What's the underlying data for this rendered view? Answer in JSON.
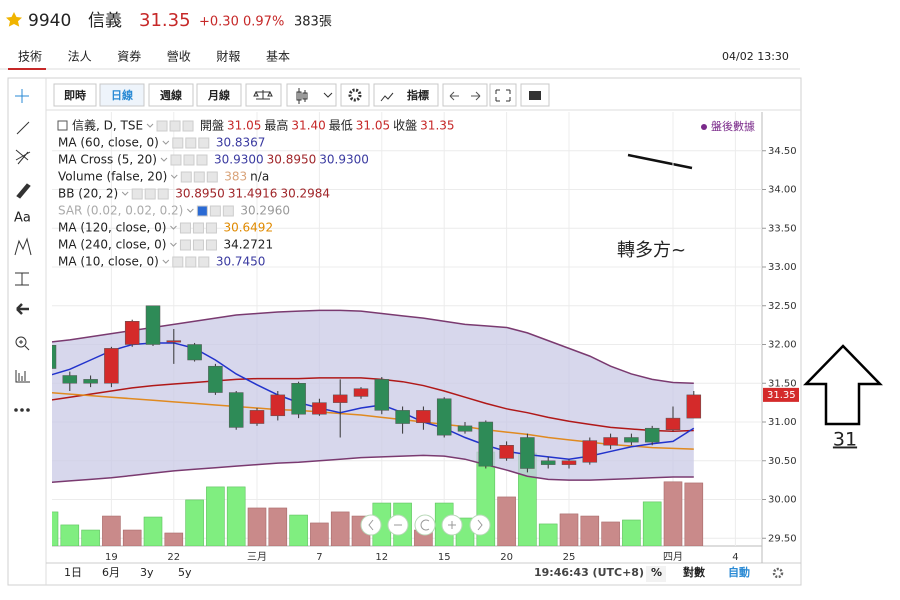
{
  "header": {
    "code": "9940",
    "name": "信義",
    "price": "31.35",
    "change": "+0.30",
    "percent": "0.97%",
    "volume": "383張"
  },
  "tabs": [
    "技術",
    "法人",
    "資券",
    "營收",
    "財報",
    "基本"
  ],
  "datetime": "04/02 13:30",
  "toolbar": {
    "realtime": "即時",
    "daily": "日線",
    "weekly": "週線",
    "monthly": "月線",
    "indicators": "指標"
  },
  "tools": {
    "text": "Aa"
  },
  "after_hours": "盤後數據",
  "legend": [
    {
      "name": "信義, D, TSE",
      "values": [
        "開盤",
        "31.05",
        "最高",
        "31.40",
        "最低",
        "31.05",
        "收盤",
        "31.35"
      ],
      "colors": [
        "#222",
        "#c62828",
        "#222",
        "#c62828",
        "#222",
        "#c62828",
        "#222",
        "#c62828"
      ]
    },
    {
      "name": "MA (60, close, 0)",
      "values": [
        "30.8367"
      ],
      "colors": [
        "#3a3aa0"
      ]
    },
    {
      "name": "MA Cross (5, 20)",
      "values": [
        "30.9300",
        "30.8950",
        "30.9300"
      ],
      "colors": [
        "#3a3aa0",
        "#a0262a",
        "#3a3aa0"
      ]
    },
    {
      "name": "Volume (false, 20)",
      "values": [
        "383",
        "n/a"
      ],
      "colors": [
        "#d9a37a",
        "#222"
      ]
    },
    {
      "name": "BB (20, 2)",
      "values": [
        "30.8950",
        "31.4916",
        "30.2984"
      ],
      "colors": [
        "#a0262a",
        "#a0262a",
        "#a0262a"
      ]
    },
    {
      "name": "SAR (0.02, 0.02, 0.2)",
      "values": [
        "30.2960"
      ],
      "colors": [
        "#999"
      ],
      "name_color": "#aaa"
    },
    {
      "name": "MA (120, close, 0)",
      "values": [
        "30.6492"
      ],
      "colors": [
        "#e08a00"
      ]
    },
    {
      "name": "MA (240, close, 0)",
      "values": [
        "34.2721"
      ],
      "colors": [
        "#222"
      ]
    },
    {
      "name": "MA (10, close, 0)",
      "values": [
        "30.7450"
      ],
      "colors": [
        "#3a3aa0"
      ]
    }
  ],
  "chart_data": {
    "type": "candlestick",
    "categories": [
      null,
      null,
      null,
      "19",
      null,
      null,
      "22",
      null,
      null,
      null,
      "三月",
      null,
      null,
      "7",
      null,
      null,
      "12",
      null,
      null,
      "15",
      null,
      null,
      "20",
      null,
      null,
      "25",
      null,
      null,
      null,
      null,
      "四月",
      null,
      null,
      "4"
    ],
    "open": [
      31.99,
      31.6,
      31.55,
      31.5,
      32.0,
      32.5,
      32.05,
      32.0,
      31.72,
      31.38,
      30.98,
      31.08,
      31.5,
      31.1,
      31.25,
      31.33,
      31.55,
      31.15,
      30.99,
      31.3,
      30.95,
      31.0,
      30.53,
      30.8,
      30.5,
      30.45,
      30.48,
      30.7,
      30.8,
      30.92,
      30.9,
      31.05,
      null,
      null
    ],
    "high": [
      32.05,
      31.65,
      31.6,
      31.97,
      32.32,
      32.5,
      32.2,
      32.02,
      31.75,
      31.4,
      31.18,
      31.4,
      31.52,
      31.3,
      31.55,
      31.45,
      31.58,
      31.2,
      31.2,
      31.32,
      31.0,
      31.02,
      30.75,
      30.85,
      30.55,
      30.52,
      30.8,
      30.85,
      30.85,
      30.95,
      31.2,
      31.4,
      null,
      null
    ],
    "low": [
      31.65,
      31.4,
      31.45,
      31.45,
      31.97,
      31.98,
      31.75,
      31.78,
      31.35,
      30.9,
      30.95,
      31.02,
      31.05,
      31.08,
      30.8,
      31.3,
      31.1,
      30.85,
      30.9,
      30.8,
      30.85,
      30.4,
      30.5,
      30.35,
      30.4,
      30.4,
      30.45,
      30.65,
      30.7,
      30.7,
      30.88,
      31.05,
      null,
      null
    ],
    "close": [
      31.69,
      31.5,
      31.5,
      31.95,
      32.3,
      32.0,
      32.05,
      31.8,
      31.38,
      30.93,
      31.15,
      31.35,
      31.1,
      31.25,
      31.35,
      31.43,
      31.15,
      30.98,
      31.15,
      30.83,
      30.88,
      30.43,
      30.7,
      30.4,
      30.45,
      30.5,
      30.76,
      30.8,
      30.74,
      30.74,
      31.05,
      31.35,
      null,
      null
    ],
    "volume": [
      207,
      128,
      97,
      182,
      97,
      176,
      79,
      280,
      359,
      359,
      231,
      231,
      188,
      140,
      207,
      182,
      261,
      261,
      97,
      261,
      170,
      571,
      298,
      565,
      134,
      195,
      182,
      146,
      158,
      268,
      390,
      383,
      null,
      null
    ],
    "up_color": "#d42a2a",
    "down_color": "#2e8b57",
    "up_volume_color": "#c98a8a",
    "down_volume_color": "#80ee80",
    "band_fill": "#c9c9e6",
    "series": [
      {
        "color": "#7a3a70",
        "values": [
          32.03,
          32.06,
          32.1,
          32.14,
          32.18,
          32.22,
          32.26,
          32.3,
          32.34,
          32.38,
          32.4,
          32.42,
          32.43,
          32.44,
          32.44,
          32.43,
          32.4,
          32.37,
          32.34,
          32.3,
          32.26,
          32.24,
          32.22,
          32.15,
          32.05,
          31.95,
          31.85,
          31.72,
          31.62,
          31.55,
          31.51,
          31.5,
          null,
          null
        ]
      },
      {
        "color": "#7a3a70",
        "values": [
          30.22,
          30.24,
          30.26,
          30.28,
          30.31,
          30.34,
          30.37,
          30.39,
          30.41,
          30.43,
          30.45,
          30.47,
          30.48,
          30.5,
          30.52,
          30.54,
          30.55,
          30.56,
          30.57,
          30.56,
          30.52,
          30.45,
          30.38,
          30.3,
          30.26,
          30.25,
          30.25,
          30.26,
          30.27,
          30.28,
          30.29,
          30.29,
          null,
          null
        ]
      },
      {
        "color": "#b01818",
        "values": [
          31.28,
          31.32,
          31.36,
          31.4,
          31.44,
          31.47,
          31.49,
          31.51,
          31.53,
          31.55,
          31.56,
          31.56,
          31.56,
          31.57,
          31.57,
          31.57,
          31.55,
          31.52,
          31.47,
          31.4,
          31.32,
          31.24,
          31.17,
          31.12,
          31.06,
          31.01,
          30.97,
          30.93,
          30.91,
          30.89,
          30.88,
          30.89,
          null,
          null
        ]
      },
      {
        "color": "#e08a20",
        "values": [
          31.38,
          31.36,
          31.34,
          31.32,
          31.3,
          31.28,
          31.26,
          31.24,
          31.22,
          31.2,
          31.18,
          31.16,
          31.15,
          31.13,
          31.11,
          31.09,
          31.06,
          31.03,
          31.0,
          30.97,
          30.94,
          30.9,
          30.87,
          30.84,
          30.8,
          30.77,
          30.74,
          30.71,
          30.69,
          30.67,
          30.66,
          30.65,
          null,
          null
        ]
      },
      {
        "color": "#2233cc",
        "values": [
          31.6,
          31.68,
          31.8,
          31.92,
          32.0,
          32.02,
          32.02,
          31.95,
          31.8,
          31.62,
          31.48,
          31.35,
          31.25,
          31.18,
          31.12,
          31.18,
          31.22,
          31.12,
          31.0,
          30.92,
          30.8,
          30.7,
          30.62,
          30.58,
          30.55,
          30.52,
          30.56,
          30.62,
          30.68,
          30.72,
          30.75,
          30.92,
          null,
          null
        ]
      }
    ],
    "ylim": [
      29.4,
      35.0
    ],
    "yticks": [
      {
        "value": 29.5,
        "label": "29.50"
      },
      {
        "value": 30,
        "label": "30.00"
      },
      {
        "value": 30.5,
        "label": "30.50"
      },
      {
        "value": 31,
        "label": "31.00"
      },
      {
        "value": 31.5,
        "label": "31.50"
      },
      {
        "value": 32,
        "label": "32.00"
      },
      {
        "value": 32.5,
        "label": "32.50"
      },
      {
        "value": 33,
        "label": "33.00"
      },
      {
        "value": 33.5,
        "label": "33.50"
      },
      {
        "value": 34,
        "label": "34.00"
      },
      {
        "value": 34.5,
        "label": "34.50"
      }
    ],
    "grid": true,
    "annotation": "轉多方~"
  },
  "side_note": "31",
  "bottom": {
    "ranges": [
      "1日",
      "6月",
      "3y",
      "5y"
    ],
    "clock": "19:46:43 (UTC+8)",
    "percent": "%",
    "log": "對數",
    "auto": "自動"
  }
}
